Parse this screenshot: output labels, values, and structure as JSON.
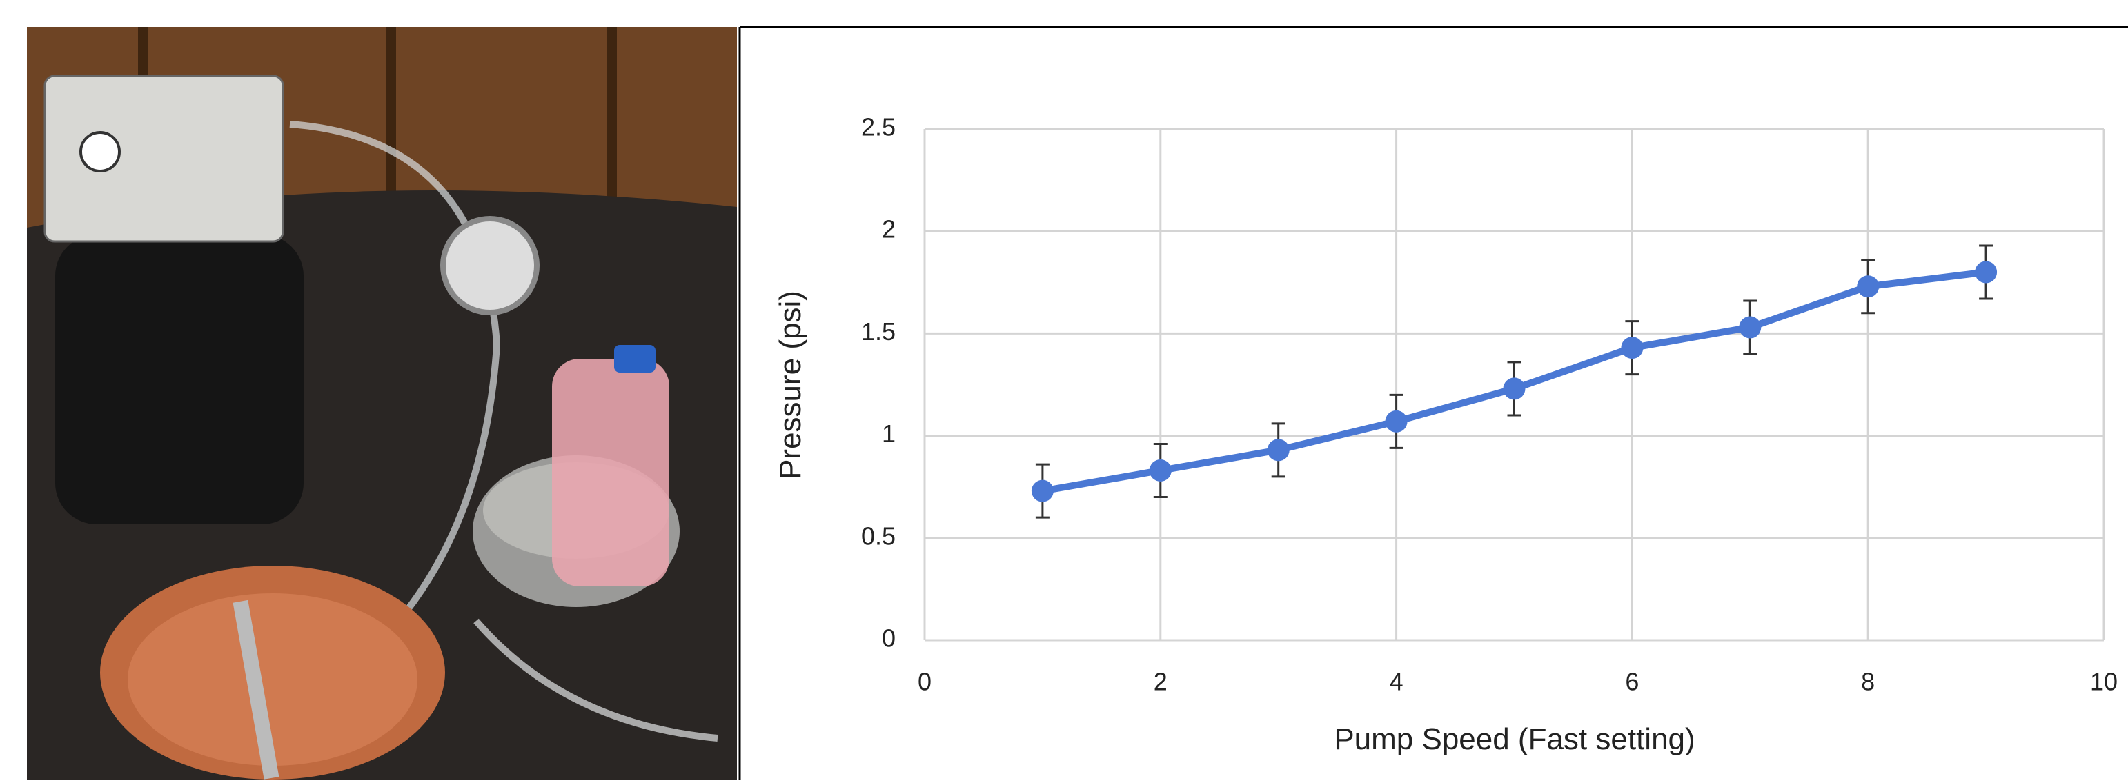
{
  "chart_data": {
    "type": "line",
    "x_label": "Pump Speed (Fast setting)",
    "y_label": "Pressure (psi)",
    "x": [
      1,
      2,
      3,
      4,
      5,
      6,
      7,
      8,
      9
    ],
    "series": [
      {
        "color": "#4a78d4",
        "values": [
          0.73,
          0.83,
          0.93,
          1.07,
          1.23,
          1.43,
          1.53,
          1.73,
          1.8
        ],
        "errors": [
          0.13,
          0.13,
          0.13,
          0.13,
          0.13,
          0.13,
          0.13,
          0.13,
          0.13
        ]
      }
    ],
    "xlim": [
      0,
      10
    ],
    "xticks": [
      0,
      2,
      4,
      6,
      8,
      10
    ],
    "ylim": [
      0,
      2.5
    ],
    "yticks": [
      0,
      0.5,
      1,
      1.5,
      2,
      2.5
    ],
    "grid": true
  }
}
